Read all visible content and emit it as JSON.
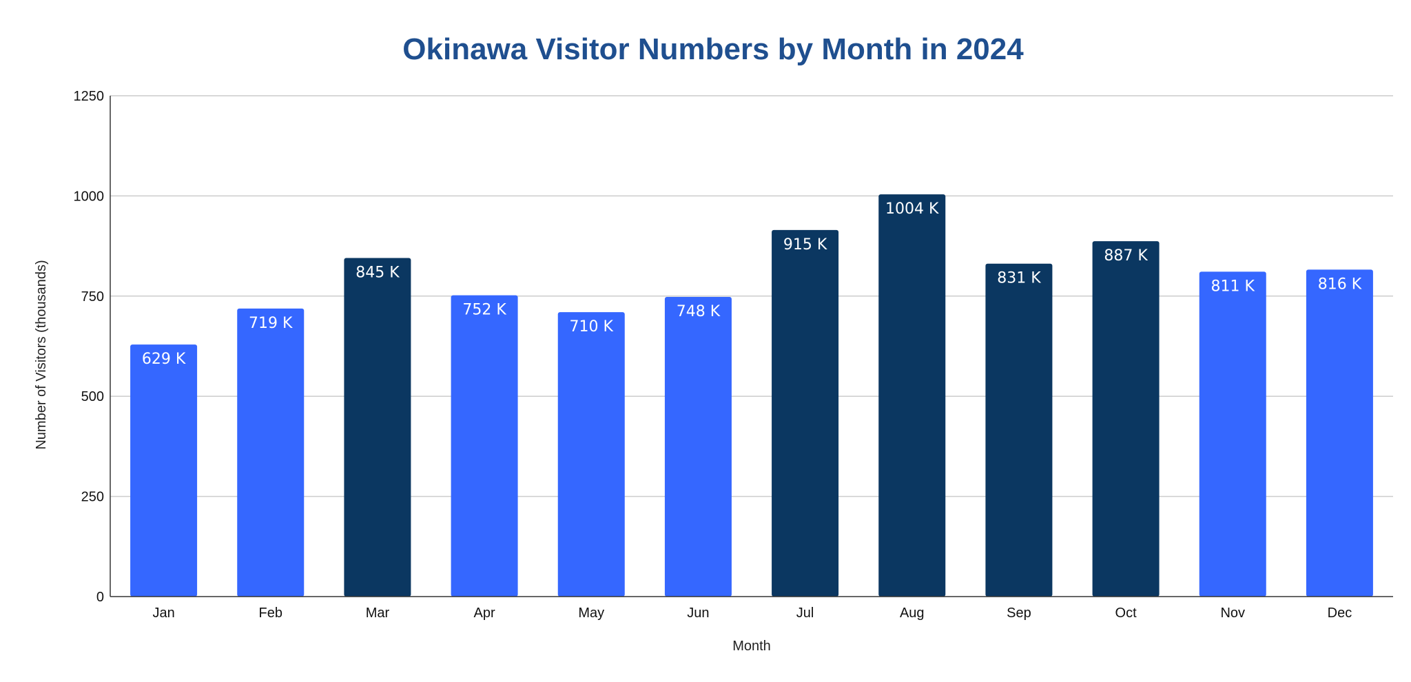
{
  "chart_data": {
    "type": "bar",
    "title": "Okinawa Visitor Numbers by Month in 2024",
    "xlabel": "Month",
    "ylabel": "Number of Visitors (thousands)",
    "categories": [
      "Jan",
      "Feb",
      "Mar",
      "Apr",
      "May",
      "Jun",
      "Jul",
      "Aug",
      "Sep",
      "Oct",
      "Nov",
      "Dec"
    ],
    "values": [
      629,
      719,
      845,
      752,
      710,
      748,
      915,
      1004,
      831,
      887,
      811,
      816
    ],
    "data_labels": [
      "629 K",
      "719 K",
      "845 K",
      "752 K",
      "710 K",
      "748 K",
      "915 K",
      "1004 K",
      "831 K",
      "887 K",
      "811 K",
      "816 K"
    ],
    "ylim": [
      0,
      1250
    ],
    "yticks": [
      0,
      250,
      500,
      750,
      1000,
      1250
    ],
    "grid": true,
    "legend": "none",
    "colors": {
      "highlight": "#0b3761",
      "default": "#3567ff",
      "title": "#1f4f8f",
      "grid": "#cccccc"
    },
    "highlighted": [
      "Mar",
      "Jul",
      "Aug",
      "Sep",
      "Oct"
    ]
  }
}
